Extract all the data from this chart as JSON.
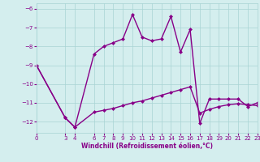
{
  "xlabel": "Windchill (Refroidissement éolien,°C)",
  "background_color": "#d4eeee",
  "line_color": "#880088",
  "xlim": [
    0,
    23
  ],
  "ylim": [
    -12.6,
    -5.7
  ],
  "yticks": [
    -6,
    -7,
    -8,
    -9,
    -10,
    -11,
    -12
  ],
  "xticks": [
    0,
    3,
    4,
    6,
    7,
    8,
    9,
    10,
    11,
    12,
    13,
    14,
    15,
    16,
    17,
    18,
    19,
    20,
    21,
    22,
    23
  ],
  "series1_x": [
    0,
    3,
    4,
    6,
    7,
    8,
    9,
    10,
    11,
    12,
    13,
    14,
    15,
    16,
    17,
    18,
    19,
    20,
    21,
    22,
    23
  ],
  "series1_y": [
    -9.0,
    -11.8,
    -12.3,
    -8.4,
    -8.0,
    -7.8,
    -7.6,
    -6.3,
    -7.5,
    -7.7,
    -7.6,
    -6.4,
    -8.3,
    -7.1,
    -12.1,
    -10.8,
    -10.8,
    -10.8,
    -10.8,
    -11.2,
    -11.0
  ],
  "series2_x": [
    0,
    3,
    4,
    6,
    7,
    8,
    9,
    10,
    11,
    12,
    13,
    14,
    15,
    16,
    17,
    18,
    19,
    20,
    21,
    22,
    23
  ],
  "series2_y": [
    -9.0,
    -11.8,
    -12.3,
    -11.5,
    -11.4,
    -11.3,
    -11.15,
    -11.0,
    -10.9,
    -10.75,
    -10.6,
    -10.45,
    -10.3,
    -10.15,
    -11.55,
    -11.35,
    -11.2,
    -11.1,
    -11.05,
    -11.1,
    -11.15
  ],
  "marker": "D",
  "markersize": 2.5,
  "linewidth": 1.0
}
